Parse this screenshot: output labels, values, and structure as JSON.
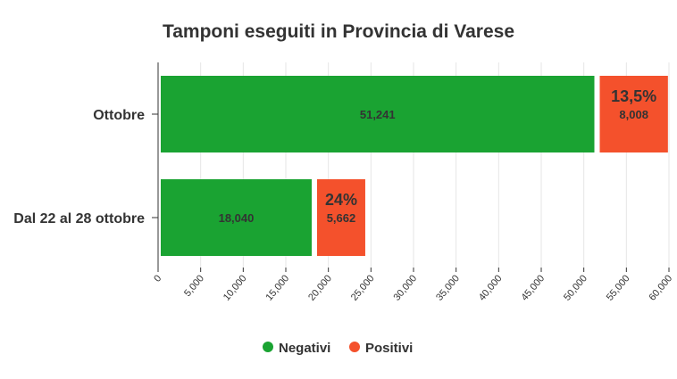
{
  "chart_data": {
    "type": "bar",
    "orientation": "horizontal",
    "stacked": true,
    "title": "Tamponi eseguiti in Provincia di Varese",
    "categories": [
      "Ottobre",
      "Dal 22 al 28 ottobre"
    ],
    "series": [
      {
        "name": "Negativi",
        "color": "#1aa332",
        "values": [
          51241,
          18040
        ],
        "labels": [
          "51,241",
          "18,040"
        ]
      },
      {
        "name": "Positivi",
        "color": "#f4512c",
        "values": [
          8008,
          5662
        ],
        "labels": [
          "8,008",
          "5,662"
        ]
      }
    ],
    "percent_labels": [
      "13,5%",
      "24%"
    ],
    "xlim": [
      0,
      60000
    ],
    "x_ticks": [
      0,
      5000,
      10000,
      15000,
      20000,
      25000,
      30000,
      35000,
      40000,
      45000,
      50000,
      55000,
      60000
    ],
    "x_tick_labels": [
      "0",
      "5,000",
      "10,000",
      "15,000",
      "20,000",
      "25,000",
      "30,000",
      "35,000",
      "40,000",
      "45,000",
      "50,000",
      "55,000",
      "60,000"
    ],
    "grid": true,
    "legend_position": "bottom-center"
  }
}
